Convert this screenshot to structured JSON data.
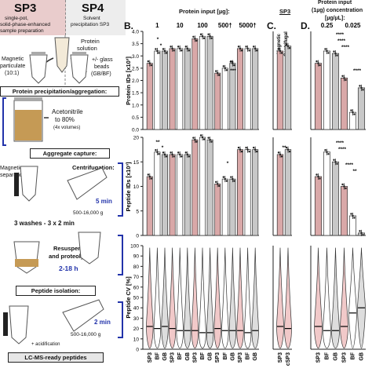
{
  "panel_a": {
    "sp3": {
      "title": "SP3",
      "subtitle_1": "single-pot,",
      "subtitle_2": "solid-phase-enhanced",
      "subtitle_3": "sample preparation"
    },
    "sp4": {
      "title": "SP4",
      "subtitle_1": "Solvent",
      "subtitle_2": "precipitation SP3"
    },
    "protein_solution": [
      "Protein",
      "solution"
    ],
    "magnetic_label": [
      "Magnetic",
      "particulate",
      "(10:1)"
    ],
    "beads_label": [
      "+/- glass",
      "beads",
      "(GB/BF)"
    ],
    "step_precip": "Protein precipitation/aggregation:",
    "acetonitrile": [
      "Acetonitrile",
      "to 80%"
    ],
    "acetonitrile_note": "(4x volumes)",
    "step_capture": "Aggregate capture:",
    "magnetic_short": [
      "Magnetic",
      "separation:"
    ],
    "centrifugation": "Centrifugation:",
    "time_5min": "5 min",
    "speed_1": "500-16,000 g",
    "washes": "3 washes - 3 x 2 min",
    "resuspension": [
      "Resuspension",
      "and proteolysis"
    ],
    "time_2_18h": "2-18 h",
    "step_isolation": "Peptide isolation:",
    "time_2min": "2 min",
    "speed_2": "500-16,000 g",
    "acidification": "+ acidification",
    "final": "LC-MS-ready peptides"
  },
  "panel_b": {
    "letter": "B.",
    "header": "Protein input [µg]:",
    "input_groups": [
      "1",
      "10",
      "100",
      "500",
      "5000"
    ],
    "input_group_marks": [
      "",
      "",
      "",
      "†",
      "†"
    ],
    "ylabel_proteins": "Protein IDs [x10³]",
    "ylabel_peptides": "Peptide IDs [x10³]",
    "ylabel_cv": "Peptide CV [%]",
    "x_tick_labels": [
      "SP3",
      "BF",
      "GB",
      "SP3",
      "BF",
      "GB",
      "SP3",
      "BF",
      "GB",
      "SP3",
      "BF",
      "GB",
      "SP3",
      "BF",
      "GB"
    ]
  },
  "panel_c": {
    "letter": "C.",
    "header": "SP3",
    "side_labels": [
      "Magnetic",
      "Centrifugal"
    ],
    "x_tick_labels": [
      "SP3",
      "cSP3"
    ]
  },
  "panel_d": {
    "letter": "D.",
    "header_1": "Protein input",
    "header_2": "(1µg) concentration",
    "header_3": "[µg/µL]:",
    "conc_labels": [
      "0.25",
      "0.025"
    ],
    "x_tick_labels": [
      "SP3",
      "BF",
      "GB",
      "SP3",
      "BF",
      "GB"
    ]
  },
  "sig_marks": {
    "b_protein": [
      "*",
      "*",
      "**",
      "***"
    ],
    "b_peptide": [
      "**",
      "*",
      "*"
    ],
    "c_peptide": [
      "**"
    ],
    "d_protein": [
      "****",
      "****",
      "****",
      "****"
    ],
    "d_peptide": [
      "****",
      "****",
      "****",
      "**"
    ]
  },
  "colors": {
    "sp3": "#d9a8a8",
    "bf": "#ffffff",
    "gb": "#c8c8c8",
    "sp4_header": "#ededed",
    "sp3_header": "#e9cccc",
    "blue_bracket": "#2233aa",
    "pink_violin": "#f1c9c9"
  },
  "chart_data": [
    {
      "type": "bar",
      "panel": "B",
      "title": "Protein input [µg]:",
      "ylabel": "Protein IDs [x10³]",
      "ylim": [
        0,
        4
      ],
      "ticks": [
        "0.0",
        "0.5",
        "1.0",
        "1.5",
        "2.0",
        "2.5",
        "3.0",
        "3.5",
        "4.0"
      ],
      "categories": [
        "SP3",
        "BF",
        "GB",
        "SP3",
        "BF",
        "GB",
        "SP3",
        "BF",
        "GB",
        "SP3",
        "BF",
        "GB",
        "SP3",
        "BF",
        "GB"
      ],
      "values": [
        2.7,
        3.2,
        3.2,
        3.3,
        3.3,
        3.3,
        3.7,
        3.8,
        3.8,
        2.3,
        2.5,
        2.7,
        3.3,
        3.3,
        3.3
      ]
    },
    {
      "type": "bar",
      "panel": "B",
      "ylabel": "Peptide IDs [x10³]",
      "ylim": [
        0,
        20
      ],
      "ticks": [
        "0",
        "5",
        "10",
        "15",
        "20"
      ],
      "categories": [
        "SP3",
        "BF",
        "GB",
        "SP3",
        "BF",
        "GB",
        "SP3",
        "BF",
        "GB",
        "SP3",
        "BF",
        "GB",
        "SP3",
        "BF",
        "GB"
      ],
      "values": [
        12,
        17,
        16.5,
        16.5,
        16.5,
        16.5,
        19.5,
        20,
        19.5,
        10.5,
        11.5,
        11.5,
        17.5,
        17.5,
        17.5
      ]
    },
    {
      "type": "bar",
      "panel": "C",
      "title": "SP3",
      "ylabel": "Protein IDs [x10³]",
      "ylim": [
        0,
        4
      ],
      "categories": [
        "SP3",
        "cSP3"
      ],
      "values": [
        3.2,
        3.4
      ]
    },
    {
      "type": "bar",
      "panel": "C",
      "ylabel": "Peptide IDs [x10³]",
      "ylim": [
        0,
        20
      ],
      "categories": [
        "SP3",
        "cSP3"
      ],
      "values": [
        16.5,
        17.5
      ]
    },
    {
      "type": "bar",
      "panel": "D",
      "title": "Protein input (1µg) concentration [µg/µL]:",
      "ylabel": "Protein IDs [x10³]",
      "ylim": [
        0,
        4
      ],
      "categories": [
        "SP3",
        "BF",
        "GB",
        "SP3",
        "BF",
        "GB"
      ],
      "values": [
        2.7,
        3.2,
        3.1,
        2.1,
        0.7,
        1.7
      ]
    },
    {
      "type": "bar",
      "panel": "D",
      "ylabel": "Peptide IDs [x10³]",
      "ylim": [
        0,
        20
      ],
      "categories": [
        "SP3",
        "BF",
        "GB",
        "SP3",
        "BF",
        "GB"
      ],
      "values": [
        12,
        17,
        15,
        10,
        4,
        0.5
      ]
    },
    {
      "type": "violin",
      "panel": "B",
      "ylabel": "Peptide CV [%]",
      "ylim": [
        0,
        100
      ],
      "ticks": [
        "0",
        "10",
        "20",
        "30",
        "40",
        "50",
        "60",
        "70",
        "80",
        "90",
        "100"
      ],
      "categories": [
        "SP3",
        "BF",
        "GB",
        "SP3",
        "BF",
        "GB",
        "SP3",
        "BF",
        "GB",
        "SP3",
        "BF",
        "GB",
        "SP3",
        "BF",
        "GB"
      ],
      "medians": [
        22,
        20,
        22,
        20,
        18,
        18,
        18,
        16,
        16,
        20,
        18,
        18,
        18,
        16,
        18
      ]
    },
    {
      "type": "violin",
      "panel": "C",
      "ylabel": "Peptide CV [%]",
      "ylim": [
        0,
        100
      ],
      "categories": [
        "SP3",
        "cSP3"
      ],
      "medians": [
        22,
        20
      ]
    },
    {
      "type": "violin",
      "panel": "D",
      "ylabel": "Peptide CV [%]",
      "ylim": [
        0,
        100
      ],
      "categories": [
        "SP3",
        "BF",
        "GB",
        "SP3",
        "BF",
        "GB"
      ],
      "medians": [
        22,
        18,
        18,
        22,
        35,
        40
      ]
    }
  ]
}
